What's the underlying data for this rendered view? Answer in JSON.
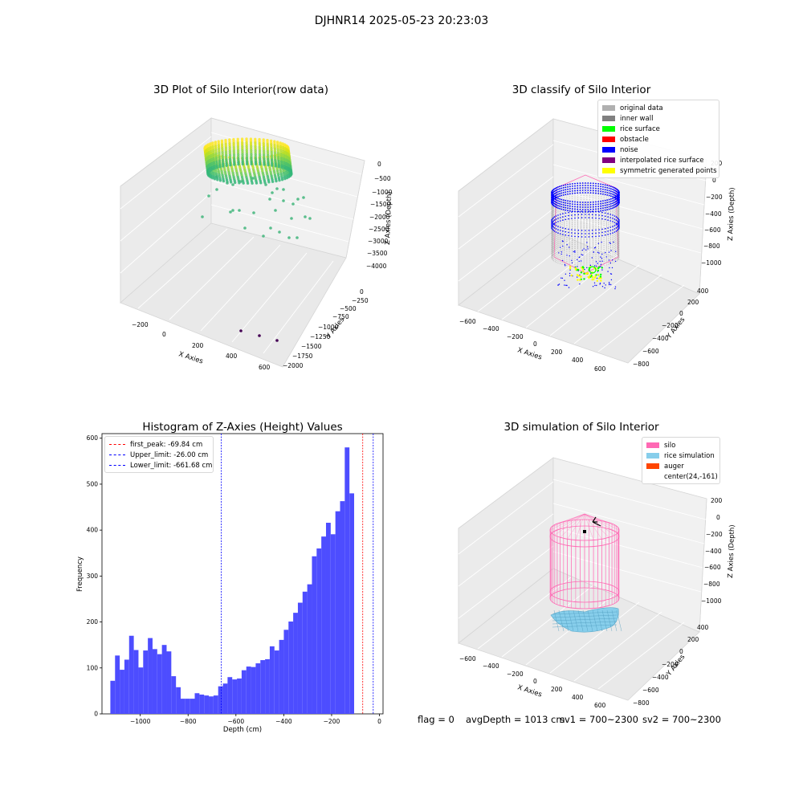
{
  "figure": {
    "title": "DJHNR14 2025-05-23 20:23:03",
    "footer": {
      "flag": "flag = 0",
      "avg_depth": "avgDepth = 1013 cm",
      "sv1": "sv1 = 700~2300",
      "sv2": "sv2 = 700~2300"
    }
  },
  "colors": {
    "histogram_bar": "#4d4dff",
    "first_peak_line": "#ff0000",
    "limit_lines": "#0000ff",
    "silo": "#ff69b4",
    "rice": "#87ceeb"
  },
  "chart_data": [
    {
      "id": "raw",
      "type": "scatter3d",
      "title": "3D Plot of Silo Interior(row data)",
      "xlabel": "X Axies",
      "ylabel": "Y Axies",
      "zlabel": "Z Axies (Depth)",
      "x_ticks": [
        "−200",
        "0",
        "200",
        "400",
        "600"
      ],
      "y_ticks": [
        "0",
        "−250",
        "−500",
        "−750",
        "−1000",
        "−1250",
        "−1500",
        "−1750",
        "−2000"
      ],
      "z_ticks": [
        "0",
        "−500",
        "−1000",
        "−1500",
        "−2000",
        "−2500",
        "−3000",
        "−3500",
        "−4000"
      ],
      "xlim": [
        -250,
        650
      ],
      "ylim": [
        -2000,
        0
      ],
      "zlim": [
        -4000,
        0
      ],
      "colormap": "viridis"
    },
    {
      "id": "classify",
      "type": "scatter3d",
      "title": "3D classify of Silo Interior",
      "xlabel": "X Axies",
      "ylabel": "Y Axies",
      "zlabel": "Z Axies (Depth)",
      "x_ticks": [
        "−600",
        "−400",
        "−200",
        "0",
        "200",
        "400",
        "600"
      ],
      "y_ticks": [
        "400",
        "200",
        "0",
        "−200",
        "−400",
        "−600",
        "−800"
      ],
      "z_ticks": [
        "200",
        "0",
        "−200",
        "−400",
        "−600",
        "−800",
        "−1000"
      ],
      "legend": [
        {
          "label": "original data",
          "color": "#b0b0b0"
        },
        {
          "label": "inner wall",
          "color": "#808080"
        },
        {
          "label": "rice surface",
          "color": "#00ff00"
        },
        {
          "label": "obstacle",
          "color": "#ff0000"
        },
        {
          "label": "noise",
          "color": "#0000ff"
        },
        {
          "label": "interpolated rice surface",
          "color": "#800080"
        },
        {
          "label": "symmetric generated points",
          "color": "#ffff00"
        }
      ]
    },
    {
      "id": "histogram",
      "type": "bar",
      "title": "Histogram of Z-Axies (Height) Values",
      "xlabel": "Depth (cm)",
      "ylabel": "Frequency",
      "xlim": [
        -1160,
        15
      ],
      "ylim": [
        0,
        610
      ],
      "x_ticks": [
        -1000,
        -800,
        -600,
        -400,
        -200,
        0
      ],
      "x_tick_labels": [
        "−1000",
        "−800",
        "−600",
        "−400",
        "−200",
        "0"
      ],
      "y_ticks": [
        0,
        100,
        200,
        300,
        400,
        500,
        600
      ],
      "bin_start": -1125,
      "bin_width": 19.6,
      "values": [
        72,
        127,
        96,
        118,
        170,
        139,
        101,
        138,
        165,
        141,
        130,
        150,
        136,
        82,
        58,
        33,
        33,
        33,
        45,
        42,
        40,
        38,
        40,
        60,
        66,
        80,
        75,
        77,
        95,
        103,
        102,
        110,
        117,
        119,
        147,
        138,
        161,
        183,
        201,
        220,
        242,
        266,
        282,
        343,
        360,
        386,
        416,
        391,
        441,
        463,
        580,
        480
      ],
      "vlines": [
        {
          "label": "first_peak: -69.84 cm",
          "x": -69.84,
          "color": "#ff0000"
        },
        {
          "label": "Upper_limit: -26.00 cm",
          "x": -26.0,
          "color": "#0000ff"
        },
        {
          "label": "Lower_limit: -661.68 cm",
          "x": -661.68,
          "color": "#0000ff"
        }
      ]
    },
    {
      "id": "simulation",
      "type": "surface3d",
      "title": "3D simulation of Silo Interior",
      "xlabel": "X Axies",
      "ylabel": "Y Axies",
      "zlabel": "Z Axies (Depth)",
      "x_ticks": [
        "−600",
        "−400",
        "−200",
        "0",
        "200",
        "400",
        "600"
      ],
      "y_ticks": [
        "400",
        "200",
        "0",
        "−200",
        "−400",
        "−600",
        "−800"
      ],
      "z_ticks": [
        "200",
        "0",
        "−200",
        "−400",
        "−600",
        "−800",
        "−1000"
      ],
      "legend": [
        {
          "label": "silo",
          "color": "#ff69b4"
        },
        {
          "label": "rice simulation",
          "color": "#87ceeb"
        },
        {
          "label": "auger",
          "color": "#ff4500"
        },
        {
          "label": "center(24,-161)",
          "color": ""
        }
      ]
    }
  ]
}
